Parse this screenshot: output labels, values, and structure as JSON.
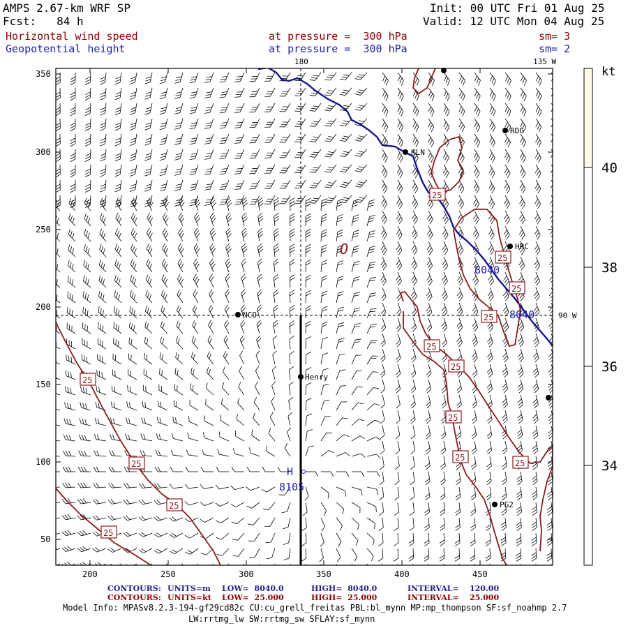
{
  "header": {
    "model": "AMPS 2.67-km WRF SP",
    "forecast": "Fcst:   84 h",
    "init": "Init: 00 UTC Fri 01 Aug 25",
    "valid": "Valid: 12 UTC Mon 04 Aug 25",
    "field1": {
      "name": "Horizontal wind speed",
      "level": "at pressure =  300 hPa",
      "sm": "sm= 3"
    },
    "field2": {
      "name": "Geopotential height",
      "level": "at pressure =  300 hPa",
      "sm": "sm= 2"
    }
  },
  "map": {
    "x_ticks": [
      "200",
      "250",
      "300",
      "350",
      "400",
      "450"
    ],
    "y_ticks": [
      "350",
      "300",
      "250",
      "200",
      "150",
      "100",
      "50"
    ],
    "lon_labels": {
      "top_180": "180",
      "top_135w": "135 W",
      "right_90w": "90 W"
    },
    "stations": [
      {
        "id": "NCO",
        "label": "NCO"
      },
      {
        "id": "KLN",
        "label": "KLN"
      },
      {
        "id": "RDG",
        "label": "RDG"
      },
      {
        "id": "HRC",
        "label": "HRC"
      },
      {
        "id": "PG2",
        "label": "PG2"
      },
      {
        "id": "Henry",
        "label": "Henry"
      },
      {
        "id": "top",
        "label": ""
      },
      {
        "id": "east",
        "label": ""
      }
    ],
    "contour_labels": {
      "wind": "25",
      "height": "8040",
      "high_marker": "H",
      "high_value": "8105",
      "low_marker": "O"
    }
  },
  "colorbar": {
    "unit": "kt",
    "ticks": [
      "40",
      "38",
      "36",
      "34"
    ],
    "colors": [
      "#fffbe6",
      "#ffffff"
    ]
  },
  "footer": {
    "contours_blue": {
      "label": "CONTOURS:",
      "units": "UNITS=m",
      "low": "LOW=  8040.0",
      "high": "HIGH=  8040.0",
      "interval": "INTERVAL=    120.00"
    },
    "contours_red": {
      "label": "CONTOURS:",
      "units": "UNITS=kt",
      "low": "LOW=  25.000",
      "high": "HIGH=  25.000",
      "interval": "INTERVAL=    25.000"
    },
    "model_info": "Model Info: MPASv8.2.3-194-gf29cd82c CU:cu_grell_freitas PBL:bl_mynn MP:mp_thompson SF:sf_noahmp 2.7",
    "model_info2": "LW:rrtmg_lw SW:rrtmg_sw SFLAY:sf_mynn"
  }
}
